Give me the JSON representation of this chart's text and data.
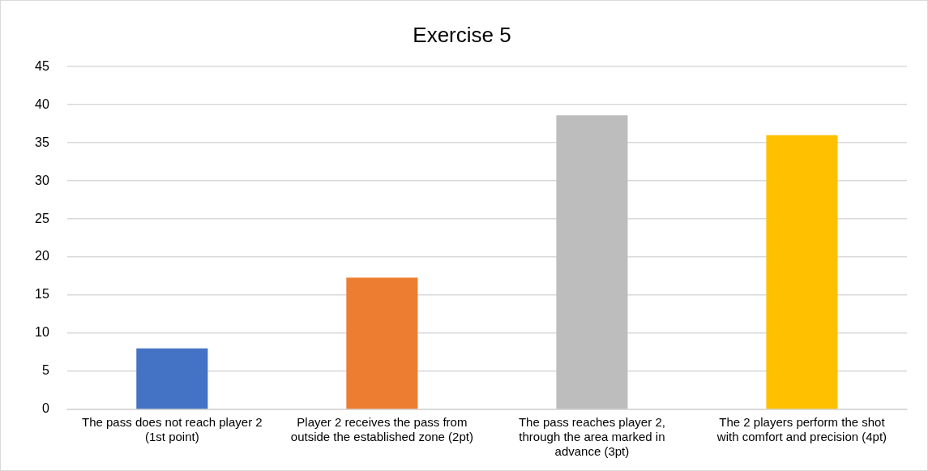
{
  "chart_data": {
    "type": "bar",
    "title": "Exercise 5",
    "categories": [
      "The pass does not reach player 2 (1st point)",
      "Player 2 receives the pass from outside the established zone (2pt)",
      "The pass reaches player 2, through the area marked in advance (3pt)",
      "The 2 players perform the shot with comfort and precision (4pt)"
    ],
    "values": [
      8,
      17.3,
      38.6,
      36
    ],
    "colors": [
      "#4472c4",
      "#ed7d31",
      "#bdbdbd",
      "#ffc000"
    ],
    "ylim": [
      0,
      45
    ],
    "yticks": [
      0,
      5,
      10,
      15,
      20,
      25,
      30,
      35,
      40,
      45
    ],
    "grid": "y",
    "legend": false
  }
}
